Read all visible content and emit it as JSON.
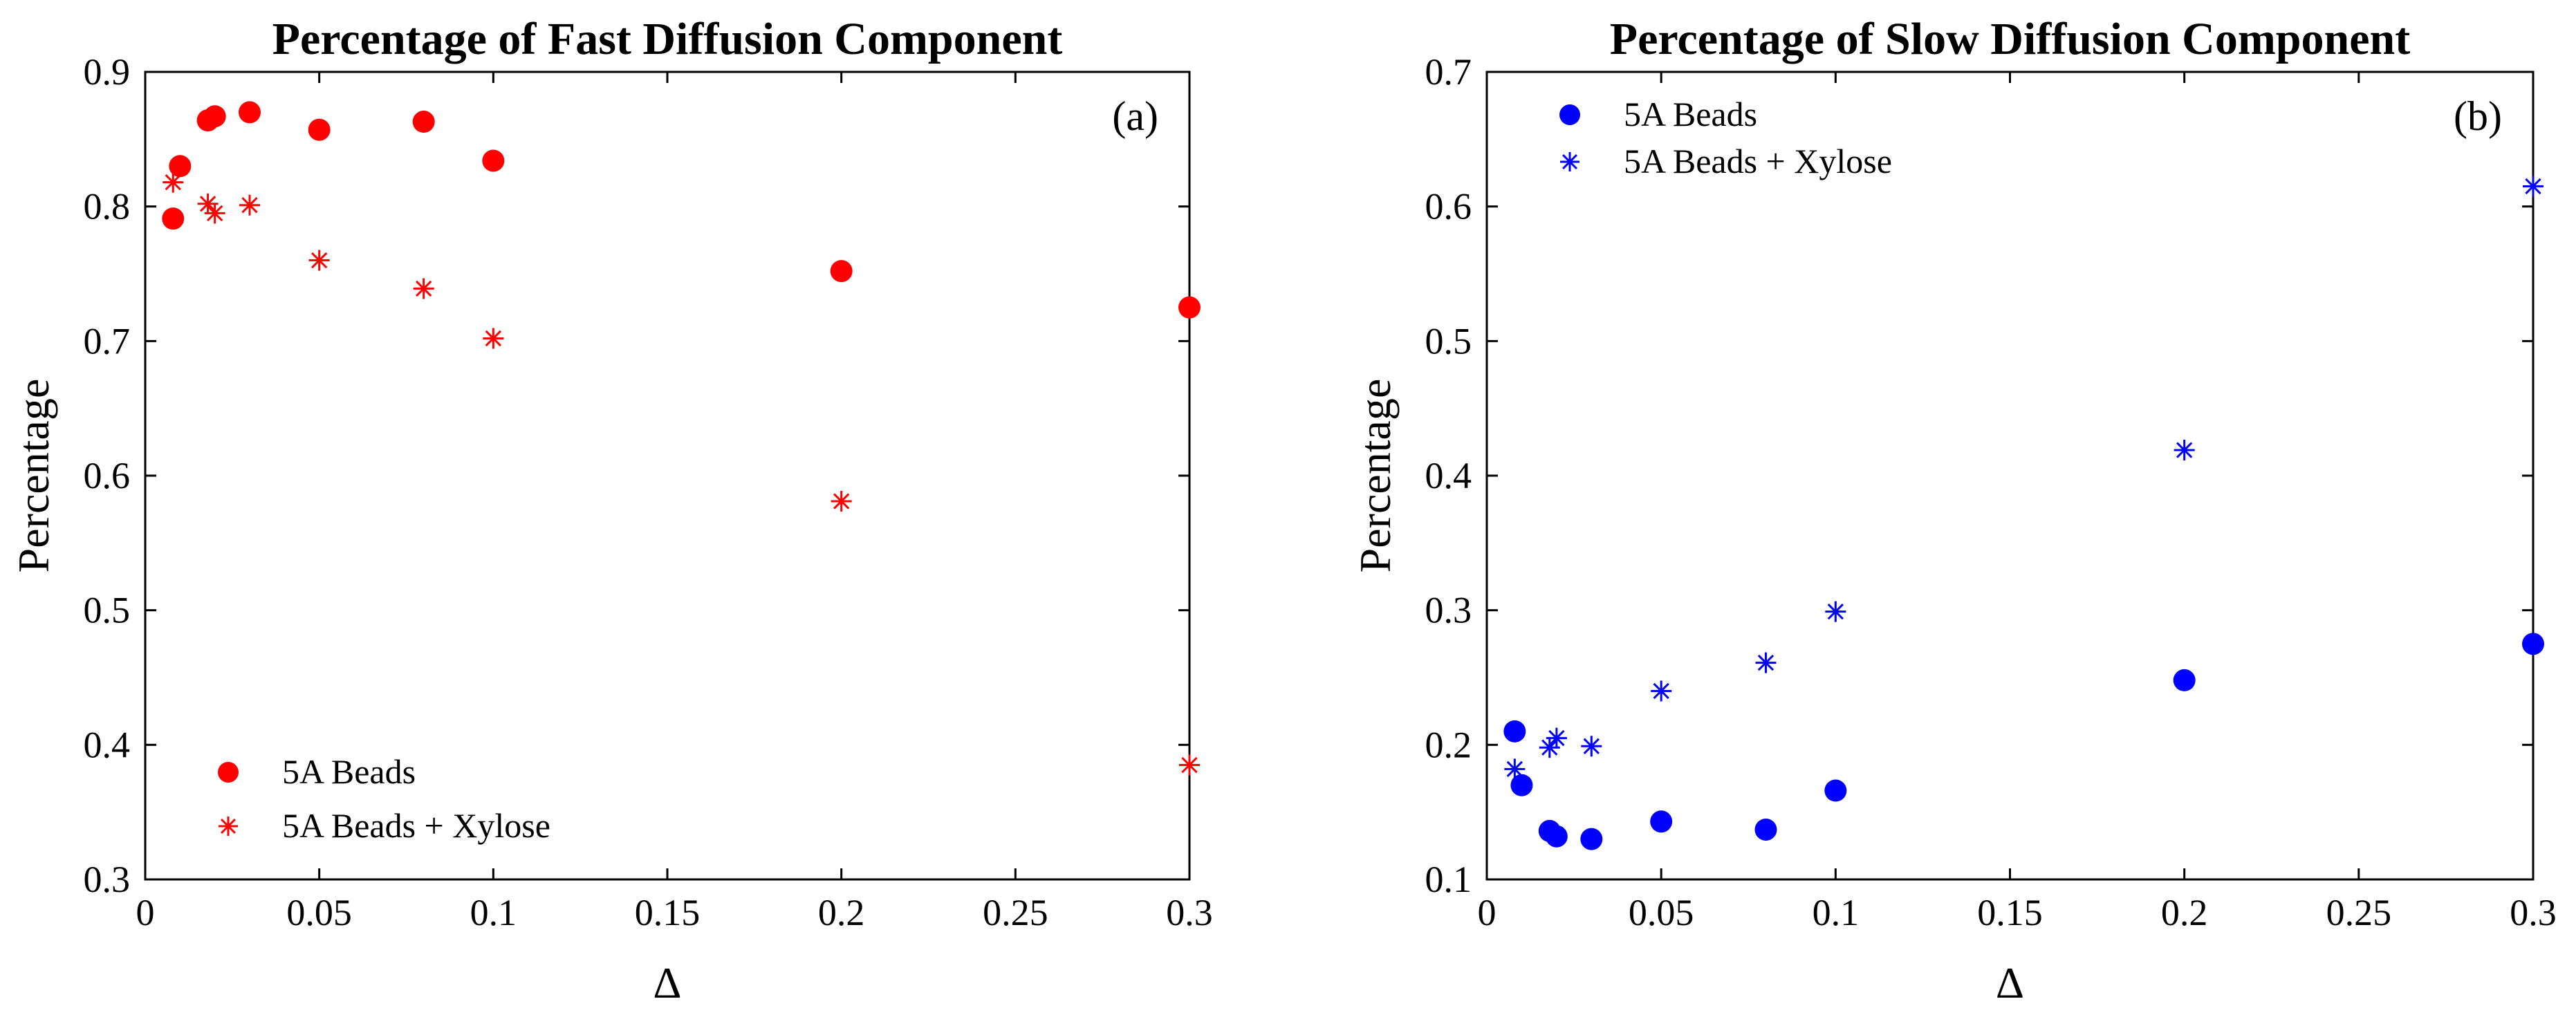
{
  "chart_data": [
    {
      "type": "scatter",
      "title": "Percentage of Fast Diffusion Component",
      "panel_label": "(a)",
      "xlabel": "Δ",
      "ylabel": "Percentage",
      "xlim": [
        0,
        0.3
      ],
      "ylim": [
        0.3,
        0.9
      ],
      "xticks": [
        0,
        0.05,
        0.1,
        0.15,
        0.2,
        0.25,
        0.3
      ],
      "xtick_labels": [
        "0",
        "0.05",
        "0.1",
        "0.15",
        "0.2",
        "0.25",
        "0.3"
      ],
      "yticks": [
        0.3,
        0.4,
        0.5,
        0.6,
        0.7,
        0.8,
        0.9
      ],
      "ytick_labels": [
        "0.3",
        "0.4",
        "0.5",
        "0.6",
        "0.7",
        "0.8",
        "0.9"
      ],
      "color": "#ff0000",
      "legend_position": "lower-left",
      "series": [
        {
          "name": "5A Beads",
          "marker": "dot",
          "x": [
            0.008,
            0.01,
            0.018,
            0.02,
            0.03,
            0.05,
            0.08,
            0.1,
            0.2,
            0.3
          ],
          "y": [
            0.791,
            0.83,
            0.864,
            0.867,
            0.87,
            0.857,
            0.863,
            0.834,
            0.752,
            0.725
          ]
        },
        {
          "name": "5A Beads + Xylose",
          "marker": "star",
          "x": [
            0.008,
            0.018,
            0.02,
            0.03,
            0.05,
            0.08,
            0.1,
            0.2,
            0.3
          ],
          "y": [
            0.818,
            0.802,
            0.795,
            0.801,
            0.76,
            0.739,
            0.702,
            0.581,
            0.385
          ]
        }
      ]
    },
    {
      "type": "scatter",
      "title": "Percentage of Slow Diffusion Component",
      "panel_label": "(b)",
      "xlabel": "Δ",
      "ylabel": "Percentage",
      "xlim": [
        0,
        0.3
      ],
      "ylim": [
        0.1,
        0.7
      ],
      "xticks": [
        0,
        0.05,
        0.1,
        0.15,
        0.2,
        0.25,
        0.3
      ],
      "xtick_labels": [
        "0",
        "0.05",
        "0.1",
        "0.15",
        "0.2",
        "0.25",
        "0.3"
      ],
      "yticks": [
        0.1,
        0.2,
        0.3,
        0.4,
        0.5,
        0.6,
        0.7
      ],
      "ytick_labels": [
        "0.1",
        "0.2",
        "0.3",
        "0.4",
        "0.5",
        "0.6",
        "0.7"
      ],
      "color": "#0000ff",
      "legend_position": "upper-left",
      "series": [
        {
          "name": "5A Beads",
          "marker": "dot",
          "x": [
            0.008,
            0.01,
            0.018,
            0.02,
            0.03,
            0.05,
            0.08,
            0.1,
            0.2,
            0.3
          ],
          "y": [
            0.21,
            0.17,
            0.136,
            0.132,
            0.13,
            0.143,
            0.137,
            0.166,
            0.248,
            0.275
          ]
        },
        {
          "name": "5A Beads + Xylose",
          "marker": "star",
          "x": [
            0.008,
            0.018,
            0.02,
            0.03,
            0.05,
            0.08,
            0.1,
            0.2,
            0.3
          ],
          "y": [
            0.182,
            0.198,
            0.205,
            0.199,
            0.24,
            0.261,
            0.299,
            0.419,
            0.615
          ]
        }
      ]
    }
  ]
}
